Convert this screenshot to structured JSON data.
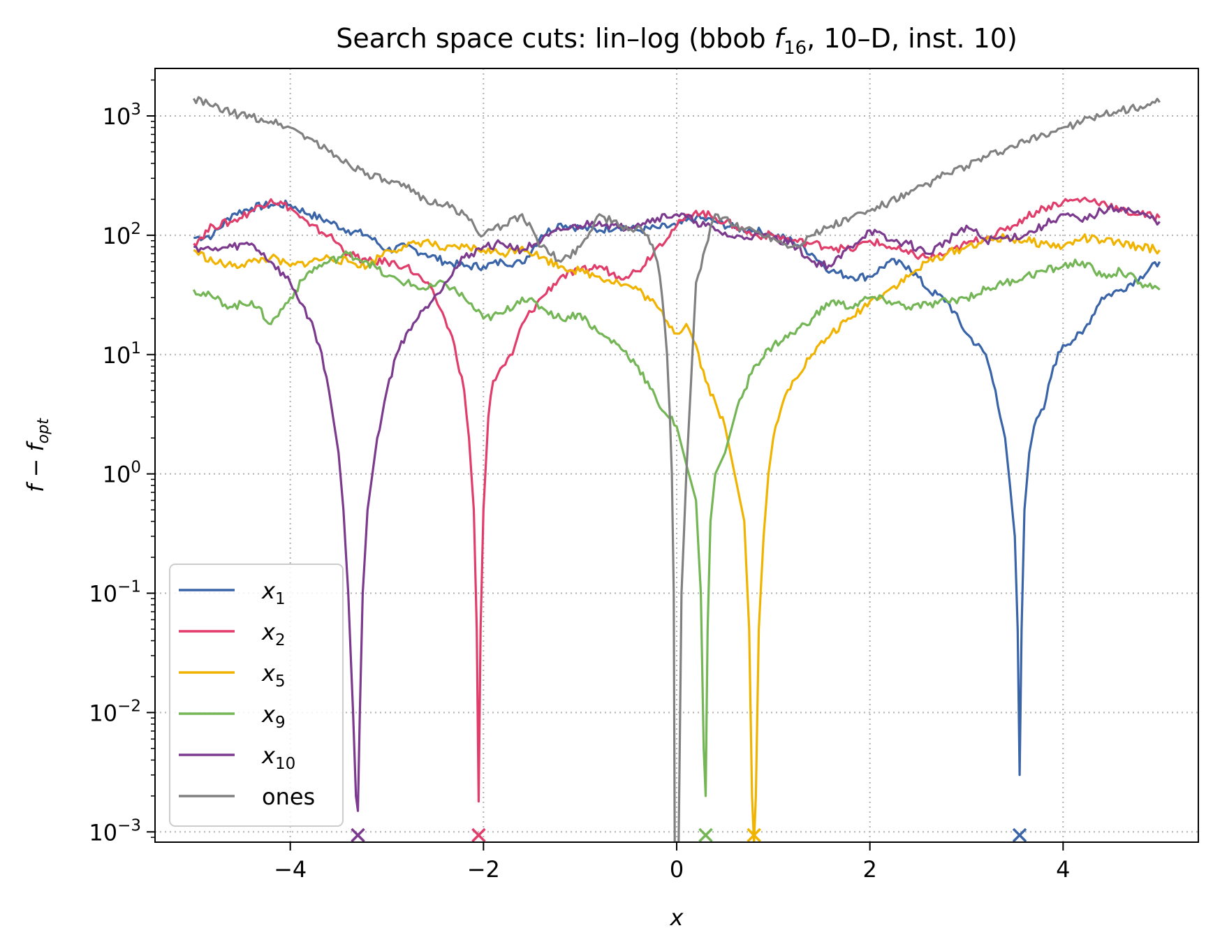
{
  "chart_data": {
    "type": "line",
    "title": {
      "prefix": "Search space cuts: lin–log (bbob ",
      "func": "f",
      "func_sub": "16",
      "suffix": ", 10–D, inst. 10)"
    },
    "xlabel": "x",
    "ylabel": {
      "main": "f",
      "minus": " − ",
      "opt": "f",
      "opt_sub": "opt"
    },
    "xlim": [
      -5.4,
      5.4
    ],
    "ylim": [
      0.00082,
      2500
    ],
    "y_scale": "log",
    "grid": true,
    "legend_position": "lower-left",
    "x_ticks": [
      {
        "value": -4,
        "label": "−4"
      },
      {
        "value": -2,
        "label": "−2"
      },
      {
        "value": 0,
        "label": "0"
      },
      {
        "value": 2,
        "label": "2"
      },
      {
        "value": 4,
        "label": "4"
      }
    ],
    "y_ticks": [
      {
        "value": 0.001,
        "base": "10",
        "exp": "−3"
      },
      {
        "value": 0.01,
        "base": "10",
        "exp": "−2"
      },
      {
        "value": 0.1,
        "base": "10",
        "exp": "−1"
      },
      {
        "value": 1,
        "base": "10",
        "exp": "0"
      },
      {
        "value": 10,
        "base": "10",
        "exp": "1"
      },
      {
        "value": 100,
        "base": "10",
        "exp": "2"
      },
      {
        "value": 1000,
        "base": "10",
        "exp": "3"
      }
    ],
    "series": [
      {
        "name": "x",
        "name_sub": "1",
        "color": "#3a64a8",
        "optimum_x": 3.55,
        "x": [
          -5.0,
          -4.8,
          -4.6,
          -4.4,
          -4.2,
          -4.0,
          -3.8,
          -3.6,
          -3.4,
          -3.2,
          -3.0,
          -2.8,
          -2.6,
          -2.4,
          -2.2,
          -2.0,
          -1.8,
          -1.6,
          -1.4,
          -1.2,
          -1.0,
          -0.8,
          -0.6,
          -0.4,
          -0.2,
          0.0,
          0.2,
          0.4,
          0.6,
          0.8,
          1.0,
          1.2,
          1.4,
          1.6,
          1.8,
          2.0,
          2.2,
          2.4,
          2.6,
          2.8,
          3.0,
          3.2,
          3.3,
          3.4,
          3.45,
          3.5,
          3.53,
          3.55,
          3.57,
          3.6,
          3.65,
          3.7,
          3.8,
          3.9,
          4.0,
          4.2,
          4.4,
          4.6,
          4.8,
          5.0
        ],
        "y": [
          95,
          100,
          150,
          170,
          180,
          180,
          150,
          130,
          110,
          100,
          75,
          80,
          70,
          60,
          55,
          55,
          60,
          58,
          100,
          125,
          115,
          110,
          120,
          110,
          115,
          120,
          140,
          130,
          115,
          110,
          100,
          90,
          70,
          50,
          45,
          45,
          60,
          55,
          35,
          28,
          15,
          10,
          5,
          2,
          0.8,
          0.3,
          0.05,
          0.003,
          0.05,
          0.5,
          1.5,
          2.5,
          3.5,
          8,
          12,
          15,
          30,
          35,
          45,
          60
        ]
      },
      {
        "name": "x",
        "name_sub": "2",
        "color": "#e13d6b",
        "optimum_x": -2.05,
        "x": [
          -5.0,
          -4.8,
          -4.6,
          -4.4,
          -4.2,
          -4.0,
          -3.8,
          -3.6,
          -3.4,
          -3.2,
          -3.0,
          -2.8,
          -2.6,
          -2.5,
          -2.4,
          -2.3,
          -2.2,
          -2.15,
          -2.1,
          -2.07,
          -2.05,
          -2.03,
          -2.0,
          -1.95,
          -1.9,
          -1.8,
          -1.7,
          -1.6,
          -1.4,
          -1.2,
          -1.0,
          -0.8,
          -0.6,
          -0.4,
          -0.2,
          0.0,
          0.2,
          0.4,
          0.6,
          0.8,
          1.0,
          1.2,
          1.4,
          1.6,
          1.8,
          2.0,
          2.2,
          2.4,
          2.6,
          2.8,
          3.0,
          3.2,
          3.4,
          3.6,
          3.8,
          4.0,
          4.2,
          4.4,
          4.6,
          4.8,
          5.0
        ],
        "y": [
          85,
          120,
          130,
          160,
          200,
          170,
          120,
          100,
          70,
          60,
          60,
          55,
          40,
          30,
          20,
          12,
          5,
          2,
          0.5,
          0.05,
          0.0018,
          0.05,
          0.5,
          3,
          6,
          8,
          10,
          18,
          30,
          45,
          50,
          55,
          45,
          50,
          80,
          120,
          160,
          140,
          120,
          100,
          100,
          90,
          85,
          80,
          75,
          90,
          80,
          70,
          65,
          70,
          85,
          95,
          110,
          140,
          170,
          190,
          200,
          190,
          160,
          150,
          140
        ]
      },
      {
        "name": "x",
        "name_sub": "5",
        "color": "#f0b400",
        "optimum_x": 0.8,
        "x": [
          -5.0,
          -4.8,
          -4.6,
          -4.4,
          -4.2,
          -4.0,
          -3.8,
          -3.6,
          -3.4,
          -3.2,
          -3.0,
          -2.8,
          -2.6,
          -2.4,
          -2.2,
          -2.0,
          -1.8,
          -1.6,
          -1.4,
          -1.2,
          -1.0,
          -0.8,
          -0.6,
          -0.4,
          -0.2,
          0.0,
          0.1,
          0.2,
          0.3,
          0.4,
          0.5,
          0.6,
          0.7,
          0.75,
          0.78,
          0.8,
          0.82,
          0.85,
          0.9,
          0.95,
          1.0,
          1.1,
          1.2,
          1.4,
          1.6,
          1.8,
          2.0,
          2.2,
          2.4,
          2.6,
          2.8,
          3.0,
          3.2,
          3.4,
          3.6,
          3.8,
          4.0,
          4.2,
          4.4,
          4.6,
          4.8,
          5.0
        ],
        "y": [
          75,
          60,
          55,
          60,
          65,
          55,
          60,
          65,
          60,
          55,
          75,
          80,
          90,
          75,
          80,
          75,
          70,
          80,
          65,
          55,
          50,
          45,
          40,
          35,
          25,
          15,
          18,
          12,
          6,
          4,
          2.5,
          1.0,
          0.4,
          0.05,
          0.002,
          0.0008,
          0.002,
          0.05,
          0.3,
          1.0,
          2,
          4,
          6,
          10,
          15,
          20,
          28,
          35,
          45,
          60,
          70,
          80,
          90,
          95,
          90,
          85,
          80,
          95,
          90,
          85,
          80,
          75
        ]
      },
      {
        "name": "x",
        "name_sub": "9",
        "color": "#74b556",
        "optimum_x": 0.3,
        "x": [
          -5.0,
          -4.8,
          -4.6,
          -4.4,
          -4.2,
          -4.0,
          -3.8,
          -3.6,
          -3.4,
          -3.2,
          -3.0,
          -2.8,
          -2.6,
          -2.4,
          -2.2,
          -2.0,
          -1.8,
          -1.6,
          -1.4,
          -1.2,
          -1.0,
          -0.8,
          -0.6,
          -0.4,
          -0.2,
          0.0,
          0.1,
          0.2,
          0.25,
          0.28,
          0.3,
          0.32,
          0.35,
          0.4,
          0.5,
          0.6,
          0.7,
          0.8,
          1.0,
          1.2,
          1.4,
          1.6,
          1.8,
          2.0,
          2.2,
          2.4,
          2.6,
          2.8,
          3.0,
          3.2,
          3.4,
          3.6,
          3.8,
          4.0,
          4.2,
          4.4,
          4.6,
          4.8,
          5.0
        ],
        "y": [
          35,
          30,
          25,
          28,
          18,
          30,
          50,
          60,
          70,
          60,
          45,
          40,
          35,
          40,
          30,
          20,
          22,
          30,
          25,
          20,
          22,
          15,
          12,
          8,
          4,
          2.5,
          1.2,
          0.6,
          0.1,
          0.005,
          0.002,
          0.05,
          0.4,
          1.0,
          1.5,
          3,
          5,
          8,
          12,
          15,
          20,
          28,
          25,
          30,
          28,
          25,
          26,
          28,
          30,
          35,
          40,
          45,
          50,
          55,
          60,
          45,
          50,
          40,
          35
        ]
      },
      {
        "name": "x",
        "name_sub": "10",
        "color": "#7b3a8d",
        "optimum_x": -3.3,
        "x": [
          -5.0,
          -4.8,
          -4.6,
          -4.4,
          -4.2,
          -4.0,
          -3.8,
          -3.7,
          -3.6,
          -3.5,
          -3.45,
          -3.4,
          -3.35,
          -3.32,
          -3.3,
          -3.28,
          -3.25,
          -3.2,
          -3.1,
          -3.0,
          -2.9,
          -2.8,
          -2.6,
          -2.4,
          -2.2,
          -2.0,
          -1.8,
          -1.6,
          -1.4,
          -1.2,
          -1.0,
          -0.8,
          -0.6,
          -0.4,
          -0.2,
          0.0,
          0.2,
          0.4,
          0.6,
          0.8,
          1.0,
          1.2,
          1.4,
          1.6,
          1.8,
          2.0,
          2.2,
          2.4,
          2.6,
          2.8,
          3.0,
          3.2,
          3.4,
          3.6,
          3.8,
          4.0,
          4.2,
          4.4,
          4.6,
          4.8,
          5.0
        ],
        "y": [
          80,
          75,
          80,
          85,
          60,
          40,
          20,
          12,
          5,
          1.5,
          0.5,
          0.1,
          0.01,
          0.002,
          0.0015,
          0.01,
          0.1,
          0.5,
          2,
          5,
          10,
          15,
          25,
          40,
          65,
          80,
          85,
          75,
          90,
          110,
          120,
          130,
          115,
          125,
          140,
          150,
          130,
          110,
          95,
          100,
          95,
          85,
          60,
          55,
          80,
          110,
          90,
          85,
          70,
          90,
          120,
          90,
          95,
          100,
          120,
          150,
          130,
          160,
          170,
          150,
          130
        ]
      },
      {
        "name": "ones",
        "name_sub": "",
        "color": "#808080",
        "optimum_x": null,
        "x": [
          -5.0,
          -4.8,
          -4.6,
          -4.4,
          -4.2,
          -4.0,
          -3.8,
          -3.6,
          -3.4,
          -3.2,
          -3.0,
          -2.8,
          -2.6,
          -2.4,
          -2.2,
          -2.0,
          -1.8,
          -1.6,
          -1.4,
          -1.2,
          -1.0,
          -0.8,
          -0.6,
          -0.5,
          -0.4,
          -0.3,
          -0.2,
          -0.15,
          -0.1,
          -0.07,
          -0.05,
          -0.03,
          -0.02,
          -0.01,
          0.0,
          0.01,
          0.02,
          0.05,
          0.1,
          0.2,
          0.3,
          0.4,
          0.6,
          0.8,
          1.0,
          1.2,
          1.4,
          1.6,
          1.8,
          2.0,
          2.2,
          2.4,
          2.6,
          2.8,
          3.0,
          3.2,
          3.4,
          3.6,
          3.8,
          4.0,
          4.2,
          4.4,
          4.6,
          4.8,
          5.0
        ],
        "y": [
          1400,
          1200,
          1050,
          980,
          900,
          800,
          650,
          500,
          400,
          330,
          280,
          250,
          200,
          180,
          150,
          100,
          120,
          150,
          80,
          60,
          80,
          150,
          120,
          110,
          120,
          100,
          60,
          30,
          10,
          3,
          1,
          0.1,
          0.0008,
          0.0008,
          0.0008,
          0.0008,
          0.0008,
          0.1,
          1,
          40,
          80,
          150,
          120,
          110,
          95,
          80,
          100,
          120,
          140,
          160,
          190,
          220,
          270,
          330,
          380,
          450,
          520,
          600,
          700,
          800,
          900,
          1000,
          1100,
          1200,
          1300
        ]
      }
    ]
  }
}
